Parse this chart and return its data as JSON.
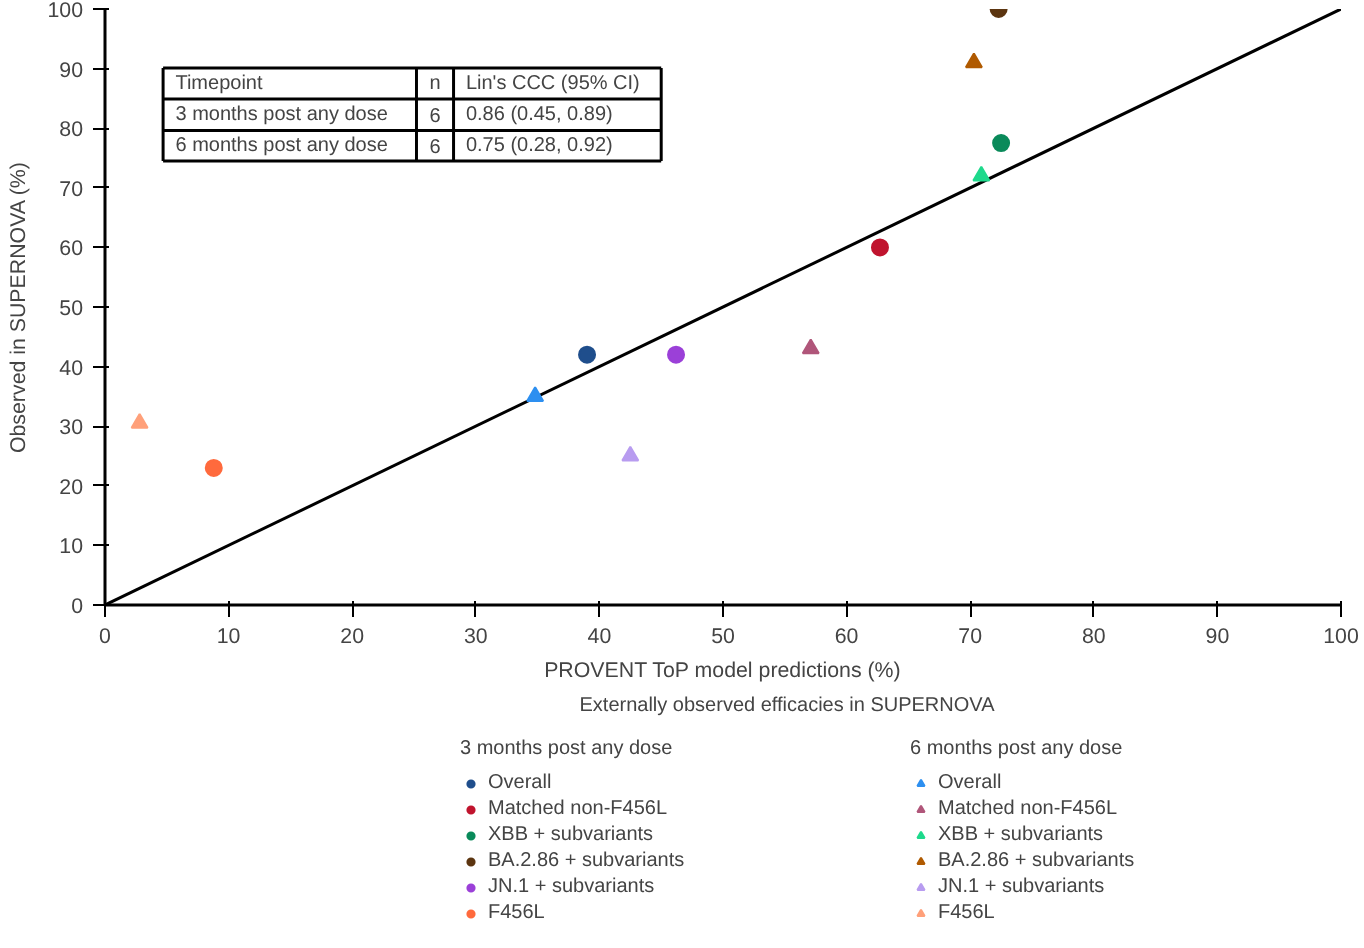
{
  "chart_data": {
    "type": "scatter",
    "xlabel": "PROVENT ToP model predictions (%)",
    "ylabel": "Observed in SUPERNOVA (%)",
    "legend_title": "Externally observed efficacies in SUPERNOVA",
    "xlim": [
      0,
      100
    ],
    "ylim": [
      0,
      100
    ],
    "xticks": [
      0,
      10,
      20,
      30,
      40,
      50,
      60,
      70,
      80,
      90,
      100
    ],
    "yticks": [
      0,
      10,
      20,
      30,
      40,
      50,
      60,
      70,
      80,
      90,
      100
    ],
    "grid": false,
    "legend": "bottom",
    "annotations": [
      "Timepoint",
      "n",
      "Lin's CCC (95% CI)",
      "3 months post any dose",
      "6",
      "0.86 (0.45, 0.89)",
      "6 months post any dose",
      "6",
      "0.75 (0.28, 0.92)",
      "3 months post any dose",
      "6 months post any dose"
    ],
    "series": [
      {
        "type": "line",
        "color": "#000000",
        "x": [
          0,
          100
        ],
        "values": [
          0,
          100
        ]
      },
      {
        "name": "Overall",
        "color": "#1f4e8c",
        "marker": "circle",
        "x": [
          39
        ],
        "values": [
          42
        ]
      },
      {
        "name": "Matched non-F456L",
        "color": "#c0142e",
        "marker": "circle",
        "x": [
          62.7
        ],
        "values": [
          60
        ]
      },
      {
        "name": "XBB + subvariants",
        "color": "#0a8a5a",
        "marker": "circle",
        "x": [
          72.5
        ],
        "values": [
          77.5
        ]
      },
      {
        "name": "BA.2.86 + subvariants",
        "color": "#5c3510",
        "marker": "circle",
        "x": [
          72.3
        ],
        "values": [
          100
        ]
      },
      {
        "name": "JN.1 + subvariants",
        "color": "#9b40d8",
        "marker": "circle",
        "x": [
          46.2
        ],
        "values": [
          42
        ]
      },
      {
        "name": "F456L",
        "color": "#ff6a3d",
        "marker": "circle",
        "x": [
          8.8
        ],
        "values": [
          23
        ]
      },
      {
        "name": "Overall",
        "color": "#2d8ff0",
        "marker": "triangle",
        "x": [
          34.8
        ],
        "values": [
          35
        ]
      },
      {
        "name": "Matched non-F456L",
        "color": "#b0567a",
        "marker": "triangle",
        "x": [
          57.1
        ],
        "values": [
          43
        ]
      },
      {
        "name": "XBB + subvariants",
        "color": "#1ed98c",
        "marker": "triangle",
        "x": [
          70.9
        ],
        "values": [
          72
        ]
      },
      {
        "name": "BA.2.86 + subvariants",
        "color": "#b05a00",
        "marker": "triangle",
        "x": [
          70.3
        ],
        "values": [
          91
        ]
      },
      {
        "name": "JN.1 + subvariants",
        "color": "#b89cf0",
        "marker": "triangle",
        "x": [
          42.5
        ],
        "values": [
          25
        ]
      },
      {
        "name": "F456L",
        "color": "#ffa07a",
        "marker": "triangle",
        "x": [
          2.8
        ],
        "values": [
          30.5
        ]
      }
    ]
  }
}
